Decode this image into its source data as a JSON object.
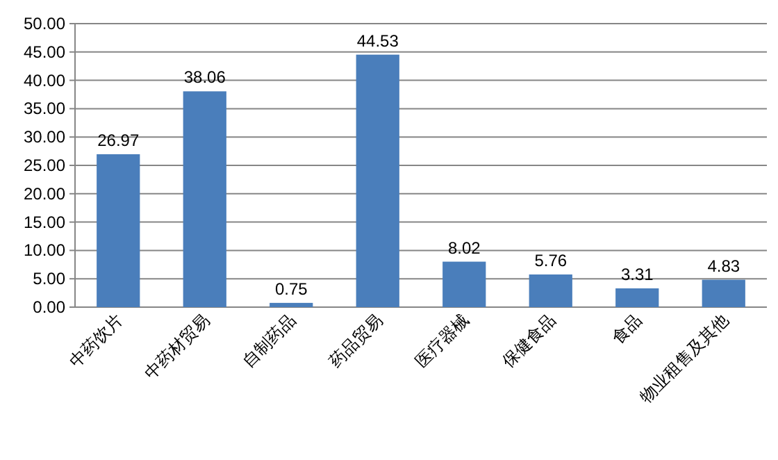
{
  "chart_data": {
    "type": "bar",
    "categories": [
      "中药饮片",
      "中药材贸易",
      "自制药品",
      "药品贸易",
      "医疗器械",
      "保健食品",
      "食品",
      "物业租售及其他"
    ],
    "values": [
      26.97,
      38.06,
      0.75,
      44.53,
      8.02,
      5.76,
      3.31,
      4.83
    ],
    "color": "#4a7ebb",
    "ylim": [
      0,
      50
    ],
    "yticks": [
      {
        "value": 0,
        "label": "0.00"
      },
      {
        "value": 5,
        "label": "5.00"
      },
      {
        "value": 10,
        "label": "10.00"
      },
      {
        "value": 15,
        "label": "15.00"
      },
      {
        "value": 20,
        "label": "20.00"
      },
      {
        "value": 25,
        "label": "25.00"
      },
      {
        "value": 30,
        "label": "30.00"
      },
      {
        "value": 35,
        "label": "35.00"
      },
      {
        "value": 40,
        "label": "40.00"
      },
      {
        "value": 45,
        "label": "45.00"
      },
      {
        "value": 50,
        "label": "50.00"
      }
    ],
    "grid": "y",
    "data_labels": true
  }
}
